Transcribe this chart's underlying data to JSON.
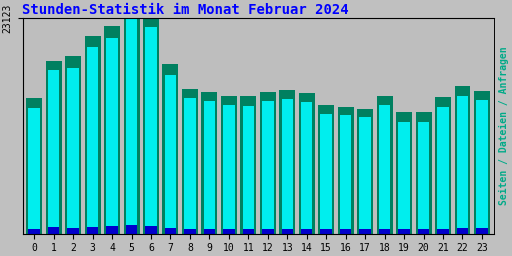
{
  "title": "Stunden-Statistik im Monat Februar 2024",
  "ylabel": "Seiten / Dateien / Anfragen",
  "xlabel_values": [
    0,
    1,
    2,
    3,
    4,
    5,
    6,
    7,
    8,
    9,
    10,
    11,
    12,
    13,
    14,
    15,
    16,
    17,
    18,
    19,
    20,
    21,
    22,
    23
  ],
  "bar_cyan": [
    13500,
    17500,
    17800,
    20000,
    21000,
    23000,
    22200,
    17000,
    14500,
    14200,
    13800,
    13700,
    14200,
    14400,
    14100,
    12800,
    12700,
    12500,
    13800,
    12000,
    12000,
    13600,
    14800,
    14300
  ],
  "bar_green": [
    14500,
    18500,
    19000,
    21200,
    22300,
    23123,
    23000,
    18200,
    15500,
    15200,
    14800,
    14700,
    15200,
    15400,
    15100,
    13800,
    13600,
    13400,
    14800,
    13000,
    13000,
    14600,
    15800,
    15300
  ],
  "bar_blue": [
    500,
    650,
    620,
    730,
    780,
    860,
    820,
    620,
    520,
    510,
    500,
    500,
    520,
    530,
    510,
    480,
    470,
    460,
    510,
    440,
    440,
    510,
    560,
    540
  ],
  "ymax": 23123,
  "bar_cyan_color": "#00EEEE",
  "bar_green_color": "#008060",
  "bar_blue_color": "#0000CC",
  "bg_color": "#C0C0C0",
  "plot_bg_color": "#BEBEBE",
  "title_color": "#0000FF",
  "ylabel_color": "#00AA88",
  "grid_color": "#888888",
  "title_fontsize": 10,
  "tick_fontsize": 7,
  "ylabel_fontsize": 7,
  "ytick_label": "23123"
}
